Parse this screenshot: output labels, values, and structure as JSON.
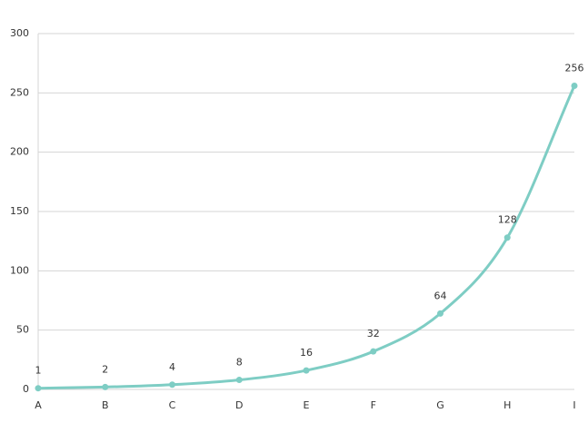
{
  "chart_data": {
    "type": "line",
    "categories": [
      "A",
      "B",
      "C",
      "D",
      "E",
      "F",
      "G",
      "H",
      "I"
    ],
    "values": [
      1,
      2,
      4,
      8,
      16,
      32,
      64,
      128,
      256
    ],
    "color": "#7ecdc4",
    "ylim": [
      0,
      300
    ],
    "yticks": [
      0,
      50,
      100,
      150,
      200,
      250,
      300
    ],
    "grid": true
  }
}
